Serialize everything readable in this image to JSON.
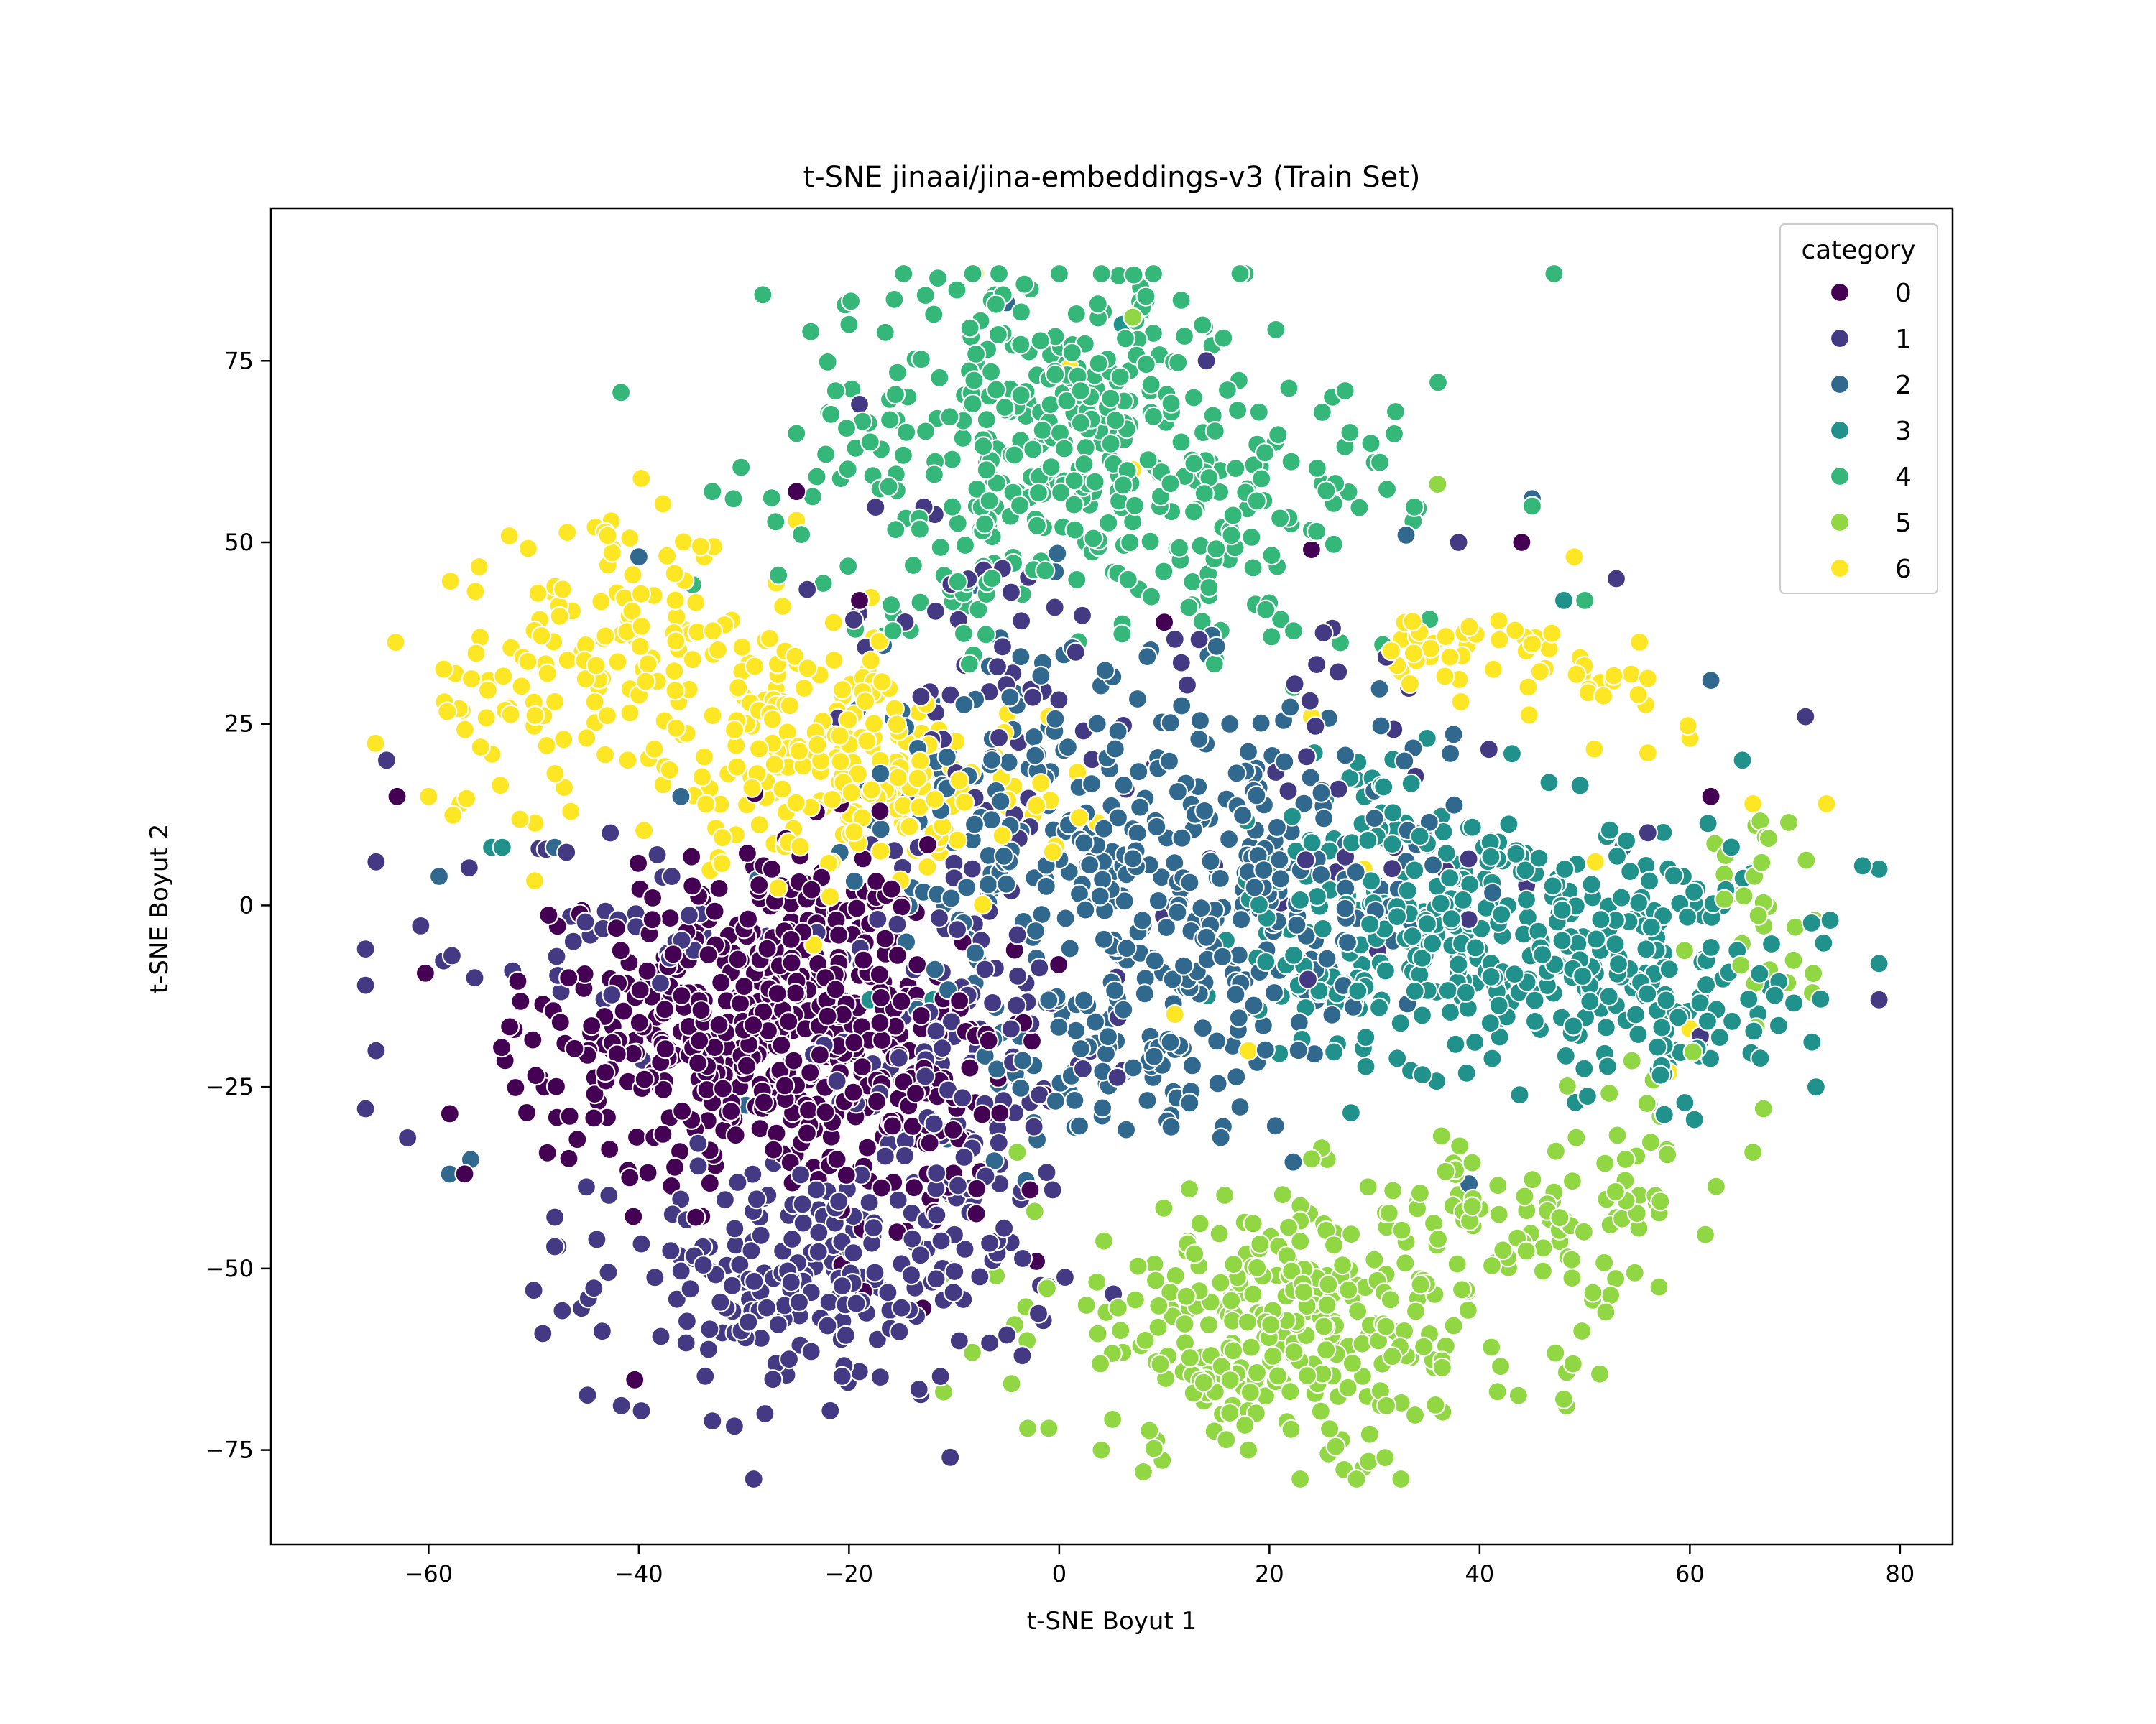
{
  "chart_data": {
    "type": "scatter",
    "title": "t-SNE jinaai/jina-embeddings-v3 (Train Set)",
    "xlabel": "t-SNE Boyut 1",
    "ylabel": "t-SNE Boyut 2",
    "xlim": [
      -75,
      85
    ],
    "ylim": [
      -88,
      96
    ],
    "xticks": [
      -60,
      -40,
      -20,
      0,
      20,
      40,
      60,
      80
    ],
    "yticks": [
      -75,
      -50,
      -25,
      0,
      25,
      50,
      75
    ],
    "xtick_labels": [
      "−60",
      "−40",
      "−20",
      "0",
      "20",
      "40",
      "60",
      "80"
    ],
    "ytick_labels": [
      "−75",
      "−50",
      "−25",
      "0",
      "25",
      "50",
      "75"
    ],
    "grid": false,
    "legend": {
      "title": "category",
      "placement": "top-right"
    },
    "series": [
      {
        "name": "0",
        "color": "#440154",
        "clusters": [
          {
            "cx": -28,
            "cy": -15,
            "sx": 8,
            "sy": 12,
            "n": 430
          },
          {
            "cx": -13,
            "cy": -28,
            "sx": 6,
            "sy": 10,
            "n": 110
          },
          {
            "cx": -42,
            "cy": -20,
            "sx": 7,
            "sy": 9,
            "n": 70
          }
        ],
        "points": [
          [
            -63,
            15
          ],
          [
            -19,
            42
          ],
          [
            24,
            49
          ],
          [
            62,
            15
          ],
          [
            10,
            39
          ],
          [
            44,
            50
          ],
          [
            -25,
            57
          ]
        ]
      },
      {
        "name": "1",
        "color": "#443983",
        "clusters": [
          {
            "cx": -24,
            "cy": -52,
            "sx": 10,
            "sy": 8,
            "n": 210
          },
          {
            "cx": -10,
            "cy": -20,
            "sx": 7,
            "sy": 16,
            "n": 150
          },
          {
            "cx": -42,
            "cy": -5,
            "sx": 6,
            "sy": 9,
            "n": 40
          },
          {
            "cx": -8,
            "cy": 30,
            "sx": 8,
            "sy": 12,
            "n": 50
          },
          {
            "cx": 25,
            "cy": 15,
            "sx": 12,
            "sy": 14,
            "n": 45
          }
        ],
        "points": [
          [
            -66,
            -6
          ],
          [
            -66,
            -11
          ],
          [
            -65,
            6
          ],
          [
            -64,
            20
          ],
          [
            -66,
            -28
          ],
          [
            -62,
            -32
          ],
          [
            -65,
            -20
          ],
          [
            -48,
            -47
          ],
          [
            -44,
            -46
          ],
          [
            -50,
            -53
          ],
          [
            -33,
            -71
          ],
          [
            -28,
            -70
          ],
          [
            14,
            75
          ],
          [
            53,
            45
          ],
          [
            71,
            26
          ],
          [
            78,
            -13
          ],
          [
            38,
            50
          ],
          [
            56,
            10
          ],
          [
            61,
            -18
          ],
          [
            -19,
            69
          ]
        ]
      },
      {
        "name": "2",
        "color": "#31688e",
        "clusters": [
          {
            "cx": 12,
            "cy": 2,
            "sx": 13,
            "sy": 14,
            "n": 380
          },
          {
            "cx": -5,
            "cy": 22,
            "sx": 8,
            "sy": 10,
            "n": 70
          },
          {
            "cx": 5,
            "cy": -22,
            "sx": 7,
            "sy": 6,
            "n": 50
          }
        ],
        "points": [
          [
            -59,
            4
          ],
          [
            -58,
            -37
          ],
          [
            -56,
            -35
          ],
          [
            -48,
            8
          ],
          [
            -40,
            48
          ],
          [
            -36,
            15
          ],
          [
            62,
            31
          ],
          [
            30,
            12
          ],
          [
            33,
            51
          ],
          [
            -5,
            83
          ],
          [
            45,
            56
          ]
        ]
      },
      {
        "name": "3",
        "color": "#21918c",
        "clusters": [
          {
            "cx": 42,
            "cy": -5,
            "sx": 12,
            "sy": 9,
            "n": 360
          },
          {
            "cx": 60,
            "cy": -15,
            "sx": 5,
            "sy": 5,
            "n": 50
          },
          {
            "cx": 32,
            "cy": 10,
            "sx": 6,
            "sy": 6,
            "n": 40
          }
        ],
        "points": [
          [
            -54,
            8
          ],
          [
            -53,
            8
          ],
          [
            78,
            5
          ],
          [
            78,
            -8
          ],
          [
            72,
            -25
          ],
          [
            65,
            20
          ],
          [
            -18,
            -13
          ],
          [
            -12,
            -13
          ],
          [
            6,
            80
          ],
          [
            35,
            23
          ],
          [
            48,
            42
          ]
        ]
      },
      {
        "name": "4",
        "color": "#35b779",
        "clusters": [
          {
            "cx": 0,
            "cy": 65,
            "sx": 13,
            "sy": 12,
            "n": 360
          },
          {
            "cx": 20,
            "cy": 50,
            "sx": 6,
            "sy": 8,
            "n": 60
          },
          {
            "cx": -10,
            "cy": 45,
            "sx": 5,
            "sy": 5,
            "n": 30
          }
        ],
        "points": [
          [
            0,
            87
          ],
          [
            -20,
            80
          ],
          [
            -25,
            65
          ],
          [
            -33,
            57
          ],
          [
            -31,
            56
          ],
          [
            30,
            61
          ],
          [
            32,
            68
          ],
          [
            26,
            70
          ],
          [
            45,
            55
          ],
          [
            50,
            42
          ]
        ]
      },
      {
        "name": "5",
        "color": "#90d743",
        "clusters": [
          {
            "cx": 22,
            "cy": -58,
            "sx": 12,
            "sy": 9,
            "n": 300
          },
          {
            "cx": 53,
            "cy": -40,
            "sx": 4,
            "sy": 7,
            "n": 45
          },
          {
            "cx": 67,
            "cy": 0,
            "sx": 3,
            "sy": 6,
            "n": 30
          },
          {
            "cx": 40,
            "cy": -45,
            "sx": 5,
            "sy": 7,
            "n": 50
          }
        ],
        "points": [
          [
            -11,
            -67
          ],
          [
            -3,
            -72
          ],
          [
            -1,
            -72
          ],
          [
            4,
            -75
          ],
          [
            8,
            -78
          ],
          [
            -4,
            -34
          ],
          [
            -6,
            -51
          ],
          [
            36,
            58
          ],
          [
            48,
            -68
          ],
          [
            52,
            -56
          ],
          [
            66,
            -34
          ],
          [
            67,
            -28
          ],
          [
            7,
            81
          ]
        ]
      },
      {
        "name": "6",
        "color": "#fde725",
        "clusters": [
          {
            "cx": -42,
            "cy": 38,
            "sx": 6,
            "sy": 7,
            "n": 90
          },
          {
            "cx": -25,
            "cy": 22,
            "sx": 8,
            "sy": 8,
            "n": 180
          },
          {
            "cx": -12,
            "cy": 14,
            "sx": 6,
            "sy": 5,
            "n": 80
          },
          {
            "cx": -54,
            "cy": 28,
            "sx": 4,
            "sy": 7,
            "n": 40
          },
          {
            "cx": 38,
            "cy": 35,
            "sx": 5,
            "sy": 3,
            "n": 35
          },
          {
            "cx": 52,
            "cy": 31,
            "sx": 3,
            "sy": 3,
            "n": 20
          }
        ],
        "points": [
          [
            -8,
            87
          ],
          [
            -60,
            15
          ],
          [
            -57,
            14
          ],
          [
            1,
            74
          ],
          [
            7,
            60
          ],
          [
            56,
            21
          ],
          [
            60,
            23
          ],
          [
            73,
            14
          ],
          [
            66,
            14
          ],
          [
            49,
            48
          ],
          [
            45,
            36
          ],
          [
            51,
            6
          ],
          [
            29,
            5
          ],
          [
            24,
            26
          ],
          [
            -1,
            26
          ],
          [
            60,
            -17
          ],
          [
            58,
            -23
          ],
          [
            18,
            -20
          ],
          [
            11,
            -15
          ],
          [
            -25,
            53
          ]
        ]
      }
    ]
  }
}
